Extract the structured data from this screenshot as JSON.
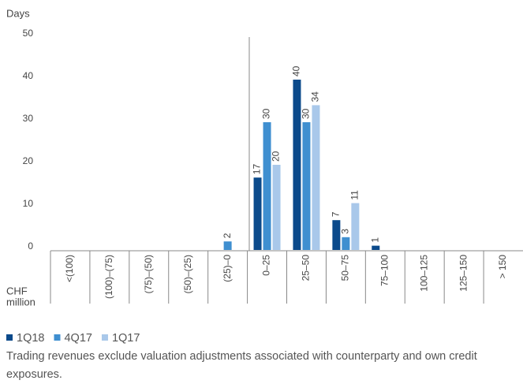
{
  "chart_data": {
    "type": "bar",
    "y_axis_label": "Days",
    "x_axis_label": [
      "CHF",
      "million"
    ],
    "categories": [
      "<(100)",
      "(100)–(75)",
      "(75)–(50)",
      "(50)–(25)",
      "(25)–0",
      "0–25",
      "25–50",
      "50–75",
      "75–100",
      "100–125",
      "125–150",
      "> 150"
    ],
    "series": [
      {
        "name": "1Q18",
        "color": "#0b4a8b",
        "values": [
          0,
          0,
          0,
          0,
          0,
          17,
          40,
          7,
          1,
          0,
          0,
          0
        ]
      },
      {
        "name": "4Q17",
        "color": "#3f8fd0",
        "values": [
          0,
          0,
          0,
          0,
          2,
          30,
          30,
          3,
          0,
          0,
          0,
          0
        ]
      },
      {
        "name": "1Q17",
        "color": "#a9c8ea",
        "values": [
          0,
          0,
          0,
          0,
          0,
          20,
          34,
          11,
          0,
          0,
          0,
          0
        ]
      }
    ],
    "ylim": [
      0,
      50
    ],
    "yticks": [
      0,
      10,
      20,
      30,
      40,
      50
    ],
    "grid": false,
    "footnote": "Trading revenues exclude valuation adjustments associated with counterparty and own credit exposures."
  }
}
